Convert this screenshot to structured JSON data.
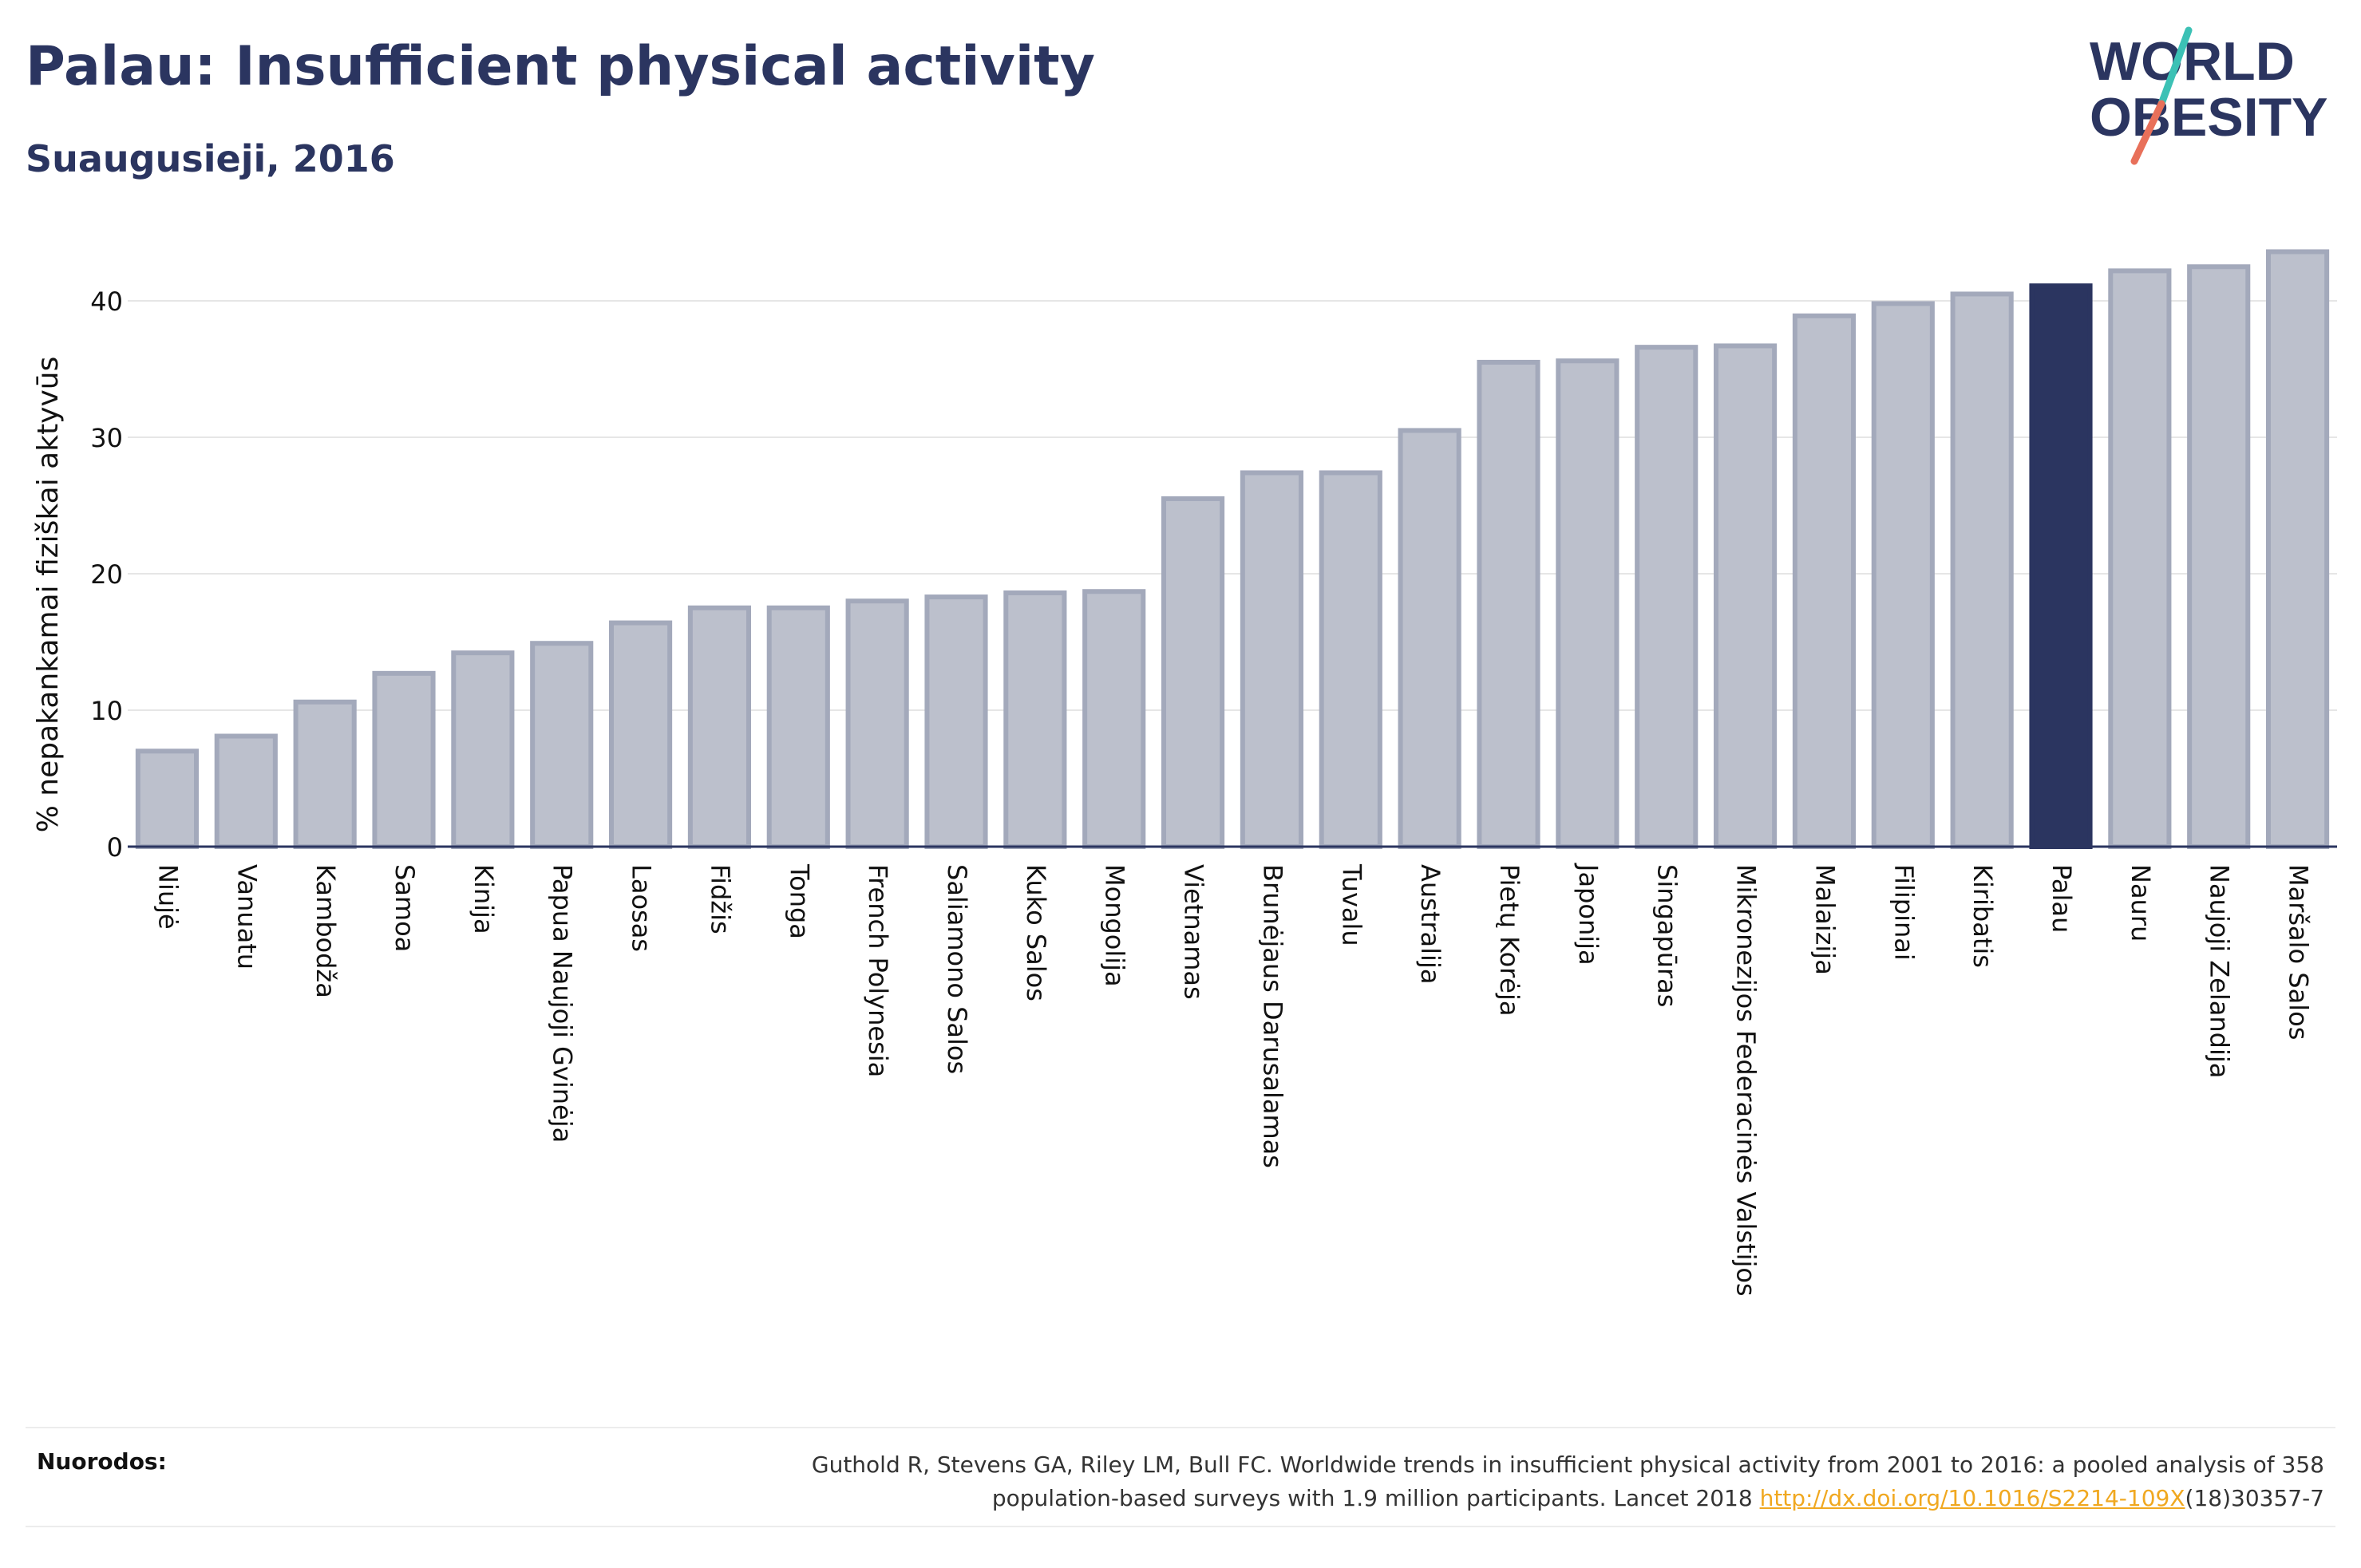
{
  "header": {
    "title": "Palau: Insufficient physical activity",
    "subtitle": "Suaugusieji, 2016"
  },
  "logo": {
    "line1": "WORLD",
    "line2": "OBESITY"
  },
  "footer": {
    "label": "Nuorodos:",
    "citation_line1": "Guthold R, Stevens GA, Riley LM, Bull FC. Worldwide trends in insufficient physical activity from 2001 to 2016: a pooled analysis of 358",
    "citation_line2_pre": "population-based surveys with 1.9 million participants. Lancet 2018 ",
    "citation_link": "http://dx.doi.org/10.1016/S2214-109X",
    "citation_line2_post": "(18)30357-7"
  },
  "colors": {
    "bar": "#bcc0cc",
    "bar_border": "#a3a9bb",
    "highlight": "#2b3560",
    "grid": "#e6e6e6",
    "axis": "#2b3560"
  },
  "chart_data": {
    "type": "bar",
    "title": "",
    "xlabel": "",
    "ylabel": "% nepakankamai fiziškai aktyvūs",
    "ylim": [
      0,
      44
    ],
    "yticks": [
      0,
      10,
      20,
      30,
      40
    ],
    "grid": true,
    "highlight": "Palau",
    "categories": [
      "Niujė",
      "Vanuatu",
      "Kambodža",
      "Samoa",
      "Kinija",
      "Papua Naujoji Gvinėja",
      "Laosas",
      "Fidžis",
      "Tonga",
      "French Polynesia",
      "Saliamono Salos",
      "Kuko Salos",
      "Mongolija",
      "Vietnamas",
      "Brunėjaus Darusalamas",
      "Tuvalu",
      "Australija",
      "Pietų Korėja",
      "Japonija",
      "Singapūras",
      "Mikronezijos Federacinės Valstijos",
      "Malaizija",
      "Filipinai",
      "Kiribatis",
      "Palau",
      "Nauru",
      "Naujoji Zelandija",
      "Maršalo Salos"
    ],
    "values": [
      7.0,
      8.1,
      10.6,
      12.7,
      14.2,
      14.9,
      16.4,
      17.5,
      17.5,
      18.0,
      18.3,
      18.6,
      18.7,
      25.5,
      27.4,
      27.4,
      30.5,
      35.5,
      35.6,
      36.6,
      36.7,
      38.9,
      39.8,
      40.5,
      41.1,
      42.2,
      42.5,
      43.6
    ]
  }
}
